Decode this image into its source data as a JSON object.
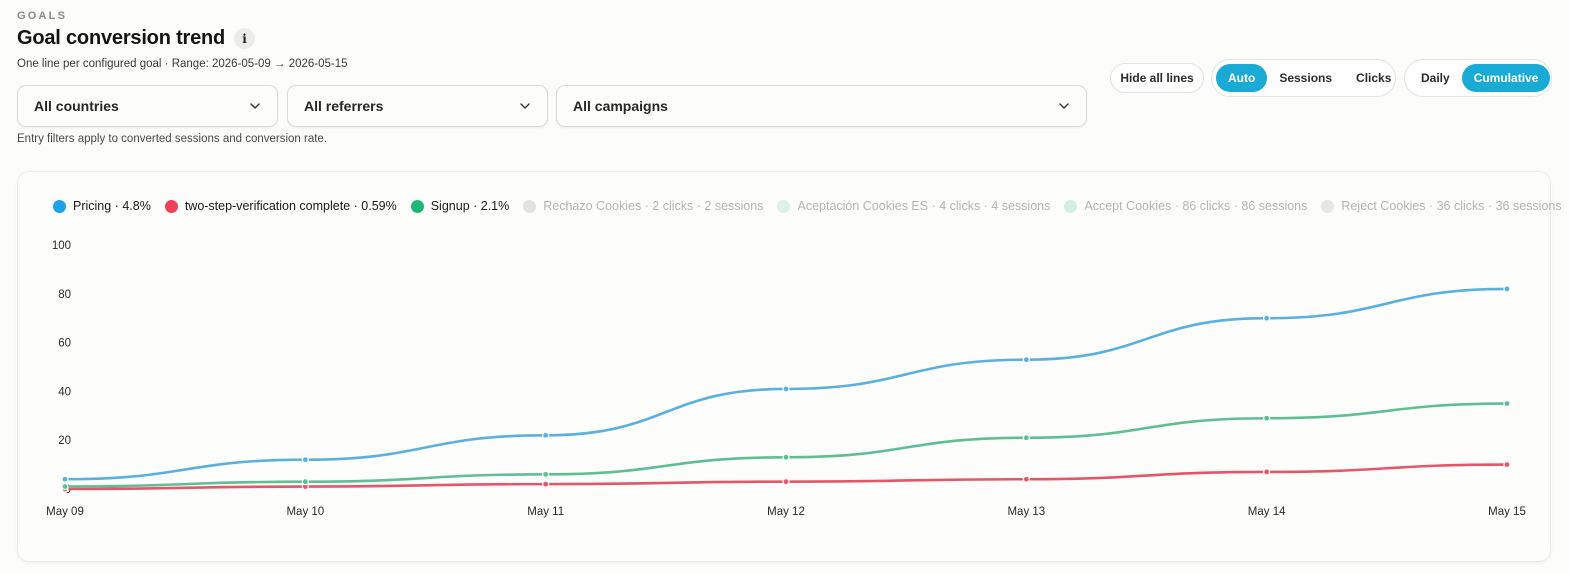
{
  "header": {
    "kicker": "GOALS",
    "title": "Goal conversion trend",
    "info_glyph": "i",
    "subtitle": "One line per configured goal · Range: 2026-05-09 → 2026-05-15"
  },
  "filters": {
    "country": "All countries",
    "referrer": "All referrers",
    "campaign": "All campaigns",
    "note": "Entry filters apply to converted sessions and conversion rate."
  },
  "controls": {
    "hide_all": "Hide all lines",
    "metric_options": [
      "Auto",
      "Sessions",
      "Clicks"
    ],
    "metric_selected": "Auto",
    "granularity_options": [
      "Daily",
      "Cumulative"
    ],
    "granularity_selected": "Cumulative"
  },
  "legend": [
    {
      "label": "Pricing · 4.8%",
      "color": "#1ea1e6",
      "active": true
    },
    {
      "label": "two-step-verification complete · 0.59%",
      "color": "#ee3f59",
      "active": true
    },
    {
      "label": "Signup · 2.1%",
      "color": "#1db778",
      "active": true
    },
    {
      "label": "Rechazo Cookies · 2 clicks · 2 sessions",
      "color": "#e2e2df",
      "active": false
    },
    {
      "label": "Aceptación Cookies ES · 4 clicks · 4 sessions",
      "color": "#ddf1e9",
      "active": false
    },
    {
      "label": "Accept Cookies · 86 clicks · 86 sessions",
      "color": "#d5ede3",
      "active": false
    },
    {
      "label": "Reject Cookies · 36 clicks · 36 sessions",
      "color": "#e6e6e3",
      "active": false
    }
  ],
  "chart_data": {
    "type": "line",
    "x": [
      "May 09",
      "May 10",
      "May 11",
      "May 12",
      "May 13",
      "May 14",
      "May 15"
    ],
    "ylim": [
      0,
      100
    ],
    "yticks": [
      0,
      20,
      40,
      60,
      80,
      100
    ],
    "grid": false,
    "legend_position": "top-left",
    "series": [
      {
        "name": "Pricing",
        "color": "#5ab0de",
        "values": [
          4,
          12,
          22,
          41,
          53,
          70,
          82
        ]
      },
      {
        "name": "Signup",
        "color": "#5fbf93",
        "values": [
          1,
          3,
          6,
          13,
          21,
          29,
          35
        ]
      },
      {
        "name": "two-step-verification complete",
        "color": "#e5566b",
        "values": [
          0,
          1,
          2,
          3,
          4,
          7,
          10
        ]
      }
    ]
  }
}
